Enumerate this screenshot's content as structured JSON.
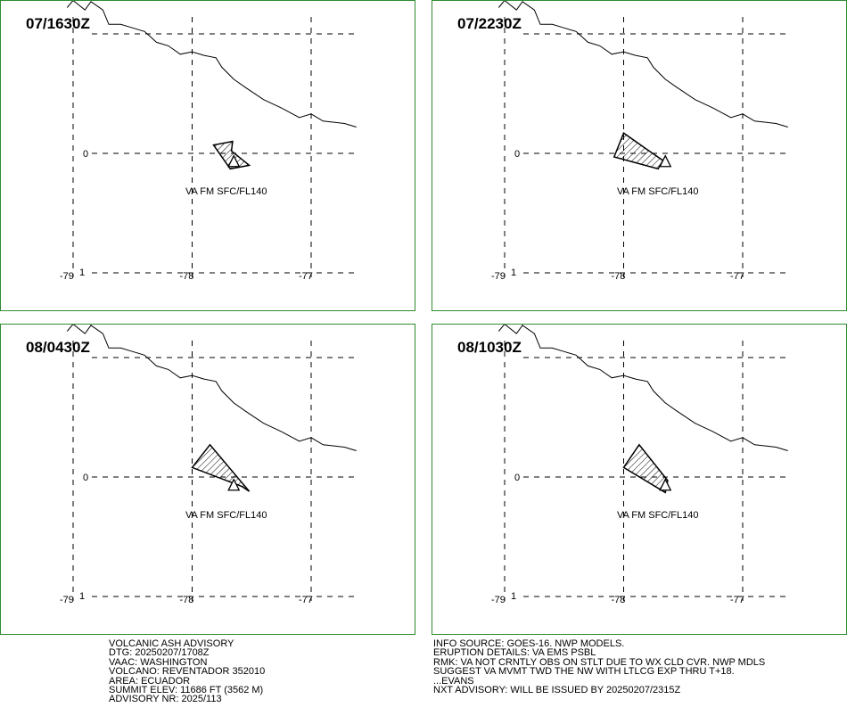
{
  "panels": [
    {
      "time": "07/1630Z",
      "level": "VA FM SFC/FL140",
      "cloud": [
        [
          -77.68,
          -0.13
        ],
        [
          -77.82,
          0.07
        ],
        [
          -77.66,
          0.1
        ],
        [
          -77.67,
          0.02
        ],
        [
          -77.52,
          -0.1
        ]
      ]
    },
    {
      "time": "07/2230Z",
      "level": "VA FM SFC/FL140",
      "cloud": [
        [
          -78.08,
          -0.03
        ],
        [
          -78.0,
          0.17
        ],
        [
          -77.8,
          0.03
        ],
        [
          -77.67,
          -0.06
        ],
        [
          -77.71,
          -0.13
        ]
      ]
    },
    {
      "time": "08/0430Z",
      "level": "VA FM SFC/FL140",
      "cloud": [
        [
          -78.0,
          0.08
        ],
        [
          -77.85,
          0.27
        ],
        [
          -77.52,
          -0.12
        ],
        [
          -77.58,
          -0.08
        ]
      ]
    },
    {
      "time": "08/1030Z",
      "level": "VA FM SFC/FL140",
      "cloud": [
        [
          -78.0,
          0.08
        ],
        [
          -77.87,
          0.27
        ],
        [
          -77.63,
          -0.03
        ],
        [
          -77.65,
          -0.13
        ]
      ]
    }
  ],
  "map": {
    "lat_label": "0",
    "lon_labels": [
      "-79",
      "-78",
      "-77"
    ],
    "minor_label": "1",
    "volcano": {
      "lon": -77.65,
      "lat": -0.08,
      "symbol": "triangle"
    },
    "coastline": [
      [
        -79.05,
        1.22
      ],
      [
        -79.0,
        1.28
      ],
      [
        -78.9,
        1.2
      ],
      [
        -78.85,
        1.27
      ],
      [
        -78.75,
        1.2
      ],
      [
        -78.7,
        1.08
      ],
      [
        -78.6,
        1.08
      ],
      [
        -78.5,
        1.05
      ],
      [
        -78.4,
        1.02
      ],
      [
        -78.3,
        0.93
      ],
      [
        -78.2,
        0.9
      ],
      [
        -78.1,
        0.83
      ],
      [
        -78.0,
        0.85
      ],
      [
        -77.9,
        0.82
      ],
      [
        -77.8,
        0.8
      ],
      [
        -77.75,
        0.72
      ],
      [
        -77.65,
        0.62
      ],
      [
        -77.55,
        0.55
      ],
      [
        -77.4,
        0.45
      ],
      [
        -77.25,
        0.38
      ],
      [
        -77.1,
        0.3
      ],
      [
        -77.0,
        0.33
      ],
      [
        -76.9,
        0.27
      ],
      [
        -76.8,
        0.26
      ],
      [
        -76.72,
        0.25
      ],
      [
        -76.62,
        0.22
      ]
    ],
    "line_color": "#000000",
    "border_color": "#2e8b2e"
  },
  "advisory_left": [
    "VOLCANIC ASH ADVISORY",
    "DTG: 20250207/1708Z",
    "VAAC: WASHINGTON",
    "VOLCANO: REVENTADOR 352010",
    "AREA: ECUADOR",
    "SUMMIT ELEV: 11686 FT (3562 M)",
    "ADVISORY NR: 2025/113"
  ],
  "advisory_right": [
    "INFO SOURCE: GOES-16. NWP MODELS.",
    "ERUPTION DETAILS: VA EMS PSBL",
    "RMK: VA NOT CRNTLY OBS ON STLT DUE TO WX CLD CVR. NWP MDLS",
    "SUGGEST VA MVMT TWD THE NW WITH LTLCG EXP THRU T+18.",
    "...EVANS",
    "NXT ADVISORY: WILL BE ISSUED BY 20250207/2315Z"
  ]
}
